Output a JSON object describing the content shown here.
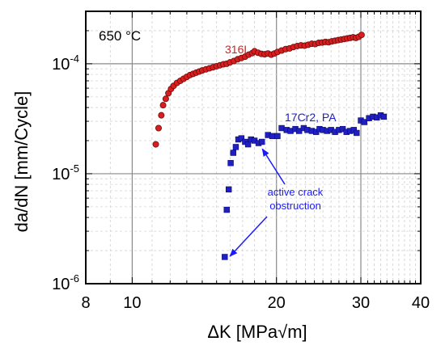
{
  "chart_data": {
    "type": "scatter",
    "xlabel": "ΔK [MPa√m]",
    "ylabel": "da/dN [mm/Cycle]",
    "x_scale": "log",
    "y_scale": "log",
    "xlim": [
      8,
      40
    ],
    "ylim": [
      1e-06,
      0.0003
    ],
    "x_ticks": [
      {
        "value": 8,
        "label": "8"
      },
      {
        "value": 10,
        "label": "10"
      },
      {
        "value": 20,
        "label": "20"
      },
      {
        "value": 30,
        "label": "30"
      },
      {
        "value": 40,
        "label": "40"
      }
    ],
    "y_ticks": [
      {
        "value": 1e-06,
        "base": "10",
        "exp": "-6"
      },
      {
        "value": 1e-05,
        "base": "10",
        "exp": "-5"
      },
      {
        "value": 0.0001,
        "base": "10",
        "exp": "-4"
      }
    ],
    "grid": true,
    "inset_label": "650 °C",
    "series": [
      {
        "name": "316L",
        "color": "#d81e1e",
        "marker": "circle",
        "points": [
          [
            11.2,
            1.85e-05
          ],
          [
            11.35,
            2.6e-05
          ],
          [
            11.5,
            3.4e-05
          ],
          [
            11.6,
            4.2e-05
          ],
          [
            11.75,
            4.8e-05
          ],
          [
            11.9,
            5.4e-05
          ],
          [
            12.05,
            5.9e-05
          ],
          [
            12.2,
            6.3e-05
          ],
          [
            12.4,
            6.7e-05
          ],
          [
            12.6,
            7e-05
          ],
          [
            12.8,
            7.3e-05
          ],
          [
            13.0,
            7.6e-05
          ],
          [
            13.2,
            7.9e-05
          ],
          [
            13.4,
            8.1e-05
          ],
          [
            13.6,
            8.3e-05
          ],
          [
            13.8,
            8.5e-05
          ],
          [
            14.0,
            8.7e-05
          ],
          [
            14.25,
            8.9e-05
          ],
          [
            14.5,
            9.1e-05
          ],
          [
            14.75,
            9.3e-05
          ],
          [
            15.0,
            9.5e-05
          ],
          [
            15.25,
            9.7e-05
          ],
          [
            15.5,
            9.9e-05
          ],
          [
            15.75,
            0.0001
          ],
          [
            16.0,
            0.000103
          ],
          [
            16.3,
            0.000106
          ],
          [
            16.6,
            0.00011
          ],
          [
            16.9,
            0.000113
          ],
          [
            17.2,
            0.000116
          ],
          [
            17.5,
            0.000121
          ],
          [
            17.8,
            0.000125
          ],
          [
            18.0,
            0.00013
          ],
          [
            18.3,
            0.000126
          ],
          [
            18.6,
            0.000123
          ],
          [
            18.9,
            0.000122
          ],
          [
            19.2,
            0.000124
          ],
          [
            19.5,
            0.000121
          ],
          [
            19.8,
            0.000124
          ],
          [
            20.1,
            0.000128
          ],
          [
            20.5,
            0.000132
          ],
          [
            20.9,
            0.000136
          ],
          [
            21.3,
            0.000138
          ],
          [
            21.7,
            0.000142
          ],
          [
            22.1,
            0.000145
          ],
          [
            22.5,
            0.000147
          ],
          [
            22.9,
            0.000146
          ],
          [
            23.3,
            0.000149
          ],
          [
            23.7,
            0.000152
          ],
          [
            24.1,
            0.000151
          ],
          [
            24.5,
            0.000155
          ],
          [
            24.9,
            0.000156
          ],
          [
            25.3,
            0.000158
          ],
          [
            25.7,
            0.000157
          ],
          [
            26.1,
            0.00016
          ],
          [
            26.5,
            0.000162
          ],
          [
            26.9,
            0.000164
          ],
          [
            27.3,
            0.000166
          ],
          [
            27.7,
            0.000168
          ],
          [
            28.1,
            0.00017
          ],
          [
            28.5,
            0.000172
          ],
          [
            28.9,
            0.000174
          ],
          [
            29.3,
            0.000172
          ],
          [
            29.7,
            0.000176
          ],
          [
            30.1,
            0.000183
          ]
        ]
      },
      {
        "name": "17Cr2, PA",
        "color": "#1f1fc4",
        "marker": "square",
        "points": [
          [
            15.6,
            1.75e-06
          ],
          [
            15.75,
            4.7e-06
          ],
          [
            15.9,
            7.2e-06
          ],
          [
            16.05,
            1.25e-05
          ],
          [
            16.25,
            1.55e-05
          ],
          [
            16.45,
            1.75e-05
          ],
          [
            16.65,
            2.05e-05
          ],
          [
            16.9,
            2.1e-05
          ],
          [
            17.2,
            1.95e-05
          ],
          [
            17.45,
            1.85e-05
          ],
          [
            17.7,
            2.05e-05
          ],
          [
            18.0,
            2e-05
          ],
          [
            18.35,
            1.9e-05
          ],
          [
            18.65,
            1.95e-05
          ],
          [
            19.2,
            2.25e-05
          ],
          [
            19.6,
            2.2e-05
          ],
          [
            20.1,
            2.2e-05
          ],
          [
            20.5,
            2.6e-05
          ],
          [
            21.0,
            2.5e-05
          ],
          [
            21.4,
            2.45e-05
          ],
          [
            21.9,
            2.55e-05
          ],
          [
            22.3,
            2.45e-05
          ],
          [
            22.8,
            2.6e-05
          ],
          [
            23.2,
            2.5e-05
          ],
          [
            23.7,
            2.45e-05
          ],
          [
            24.2,
            2.4e-05
          ],
          [
            24.6,
            2.55e-05
          ],
          [
            25.0,
            2.5e-05
          ],
          [
            25.5,
            2.45e-05
          ],
          [
            26.0,
            2.5e-05
          ],
          [
            26.5,
            2.4e-05
          ],
          [
            27.0,
            2.5e-05
          ],
          [
            27.5,
            2.55e-05
          ],
          [
            28.0,
            2.4e-05
          ],
          [
            28.5,
            2.45e-05
          ],
          [
            29.0,
            2.5e-05
          ],
          [
            29.4,
            2.35e-05
          ],
          [
            30.0,
            3.05e-05
          ],
          [
            30.5,
            2.95e-05
          ],
          [
            31.2,
            3.2e-05
          ],
          [
            31.8,
            3.3e-05
          ],
          [
            32.4,
            3.25e-05
          ],
          [
            33.0,
            3.4e-05
          ],
          [
            33.5,
            3.3e-05
          ]
        ]
      }
    ],
    "annotations": {
      "text_line1": "active crack",
      "text_line2": "obstruction",
      "color": "#1a1aff",
      "arrow_targets": [
        [
          18.4,
          1.8e-05
        ],
        [
          15.75,
          1.9e-06
        ]
      ]
    }
  }
}
